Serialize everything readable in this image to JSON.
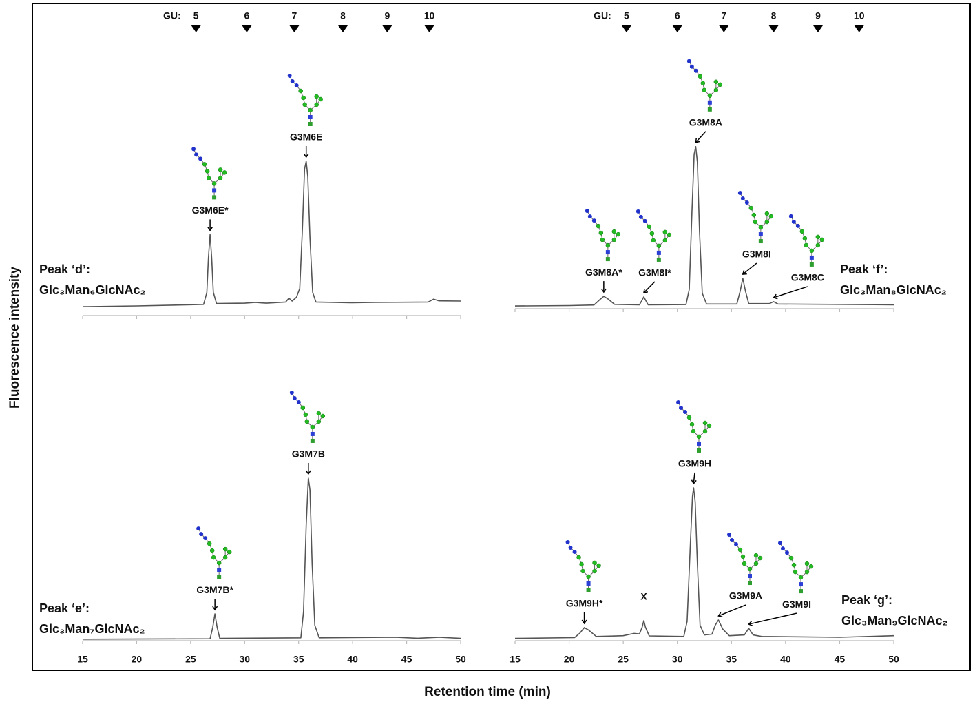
{
  "figure": {
    "xlabel": "Retention time (min)",
    "ylabel": "Fluorescence intensity"
  },
  "chart_data": [
    {
      "type": "line",
      "title": "Peak ‘d’:",
      "subtitle": "Glc₃Man₆GlcNAc₂",
      "color": "#555555",
      "xlim": [
        15,
        50
      ],
      "xticks": [
        15,
        20,
        25,
        30,
        35,
        40,
        45,
        50
      ],
      "xtick_labels": false,
      "ylim": [
        0,
        100
      ],
      "gu_label": "GU:",
      "gu_ticks": [
        {
          "value": 25.5,
          "label": "5"
        },
        {
          "value": 30.2,
          "label": "6"
        },
        {
          "value": 34.6,
          "label": "7"
        },
        {
          "value": 39.1,
          "label": "8"
        },
        {
          "value": 43.2,
          "label": "9"
        },
        {
          "value": 47.1,
          "label": "10"
        }
      ],
      "x": [
        15,
        20,
        25,
        26.2,
        26.5,
        26.65,
        26.8,
        26.95,
        27.1,
        27.4,
        30,
        31,
        32,
        33.8,
        34.1,
        34.4,
        34.8,
        35.1,
        35.35,
        35.55,
        35.7,
        35.85,
        36.05,
        36.3,
        36.6,
        40,
        42,
        47,
        47.5,
        48,
        50
      ],
      "values": [
        4.6,
        5.0,
        5.6,
        5.8,
        12,
        30,
        42,
        30,
        12,
        6.2,
        6.4,
        6.8,
        6.4,
        7.0,
        9,
        7.5,
        9.5,
        14,
        45,
        76,
        80,
        72,
        40,
        12,
        7.0,
        6.6,
        6.8,
        7.0,
        8.5,
        7.6,
        7.5
      ],
      "annotations": [
        {
          "text": "G3M6E*",
          "x": 26.8,
          "y": 42
        },
        {
          "text": "G3M6E",
          "x": 35.7,
          "y": 80
        }
      ]
    },
    {
      "type": "line",
      "title": "Peak ‘f’:",
      "subtitle": "Glc₃Man₈GlcNAc₂",
      "color": "#555555",
      "xlim": [
        15,
        50
      ],
      "xticks": [
        15,
        20,
        25,
        30,
        35,
        40,
        45,
        50
      ],
      "xtick_labels": false,
      "ylim": [
        0,
        100
      ],
      "gu_label": "GU:",
      "gu_ticks": [
        {
          "value": 25.3,
          "label": "5"
        },
        {
          "value": 30.0,
          "label": "6"
        },
        {
          "value": 34.3,
          "label": "7"
        },
        {
          "value": 38.9,
          "label": "8"
        },
        {
          "value": 43.0,
          "label": "9"
        },
        {
          "value": 46.8,
          "label": "10"
        }
      ],
      "x": [
        15,
        20,
        22.3,
        22.8,
        23.2,
        23.6,
        24.2,
        26.5,
        26.75,
        26.9,
        27.05,
        27.3,
        30.8,
        31.1,
        31.35,
        31.55,
        31.7,
        31.85,
        32.05,
        32.3,
        32.7,
        35.5,
        35.8,
        36.05,
        36.3,
        36.6,
        38.5,
        38.9,
        39.3,
        50
      ],
      "values": [
        1.4,
        1.6,
        1.9,
        4.5,
        6.4,
        5.0,
        2.2,
        2.0,
        4.5,
        6.1,
        4.5,
        2.0,
        2.1,
        10,
        50,
        80,
        84,
        76,
        40,
        8,
        2.4,
        2.4,
        9,
        15.7,
        9,
        2.6,
        2.6,
        3.6,
        2.4,
        2.0
      ],
      "annotations": [
        {
          "text": "G3M8A*",
          "x": 23.2,
          "y": 6.4
        },
        {
          "text": "G3M8I*",
          "x": 26.9,
          "y": 6.1
        },
        {
          "text": "G3M8A",
          "x": 31.7,
          "y": 84
        },
        {
          "text": "G3M8I",
          "x": 36.05,
          "y": 15.7
        },
        {
          "text": "G3M8C",
          "x": 38.9,
          "y": 3.6
        }
      ]
    },
    {
      "type": "line",
      "title": "Peak ‘e’:",
      "subtitle": "Glc₃Man₇GlcNAc₂",
      "color": "#555555",
      "xlim": [
        15,
        50
      ],
      "xticks": [
        15,
        20,
        25,
        30,
        35,
        40,
        45,
        50
      ],
      "xtick_labels": true,
      "ylim": [
        0,
        100
      ],
      "x": [
        15,
        26.8,
        27.05,
        27.25,
        27.45,
        27.7,
        35.2,
        35.45,
        35.7,
        35.9,
        36.05,
        36.25,
        36.5,
        36.9,
        44,
        46,
        48,
        50
      ],
      "values": [
        0.8,
        1.0,
        7,
        13.9,
        7,
        1.2,
        1.5,
        15,
        60,
        84.3,
        78,
        40,
        8,
        1.5,
        1.8,
        1.3,
        1.8,
        1.2
      ],
      "annotations": [
        {
          "text": "G3M7B*",
          "x": 27.25,
          "y": 13.9
        },
        {
          "text": "G3M7B",
          "x": 35.9,
          "y": 84.3
        }
      ]
    },
    {
      "type": "line",
      "title": "Peak ‘g’:",
      "subtitle": "Glc₃Man₉GlcNAc₂",
      "color": "#555555",
      "xlim": [
        15,
        50
      ],
      "xticks": [
        15,
        20,
        25,
        30,
        35,
        40,
        45,
        50
      ],
      "xtick_labels": true,
      "ylim": [
        0,
        100
      ],
      "x": [
        15,
        20.5,
        21.0,
        21.4,
        21.8,
        22.5,
        25,
        26,
        26.5,
        26.75,
        26.9,
        27.05,
        27.4,
        30.6,
        30.9,
        31.2,
        31.4,
        31.5,
        31.65,
        31.85,
        32.1,
        32.5,
        33.2,
        33.5,
        33.8,
        34.2,
        34.8,
        36.2,
        36.6,
        37,
        37.8,
        45,
        50
      ],
      "values": [
        1.2,
        1.6,
        4,
        6.8,
        5.5,
        2.2,
        2.6,
        3.8,
        3.5,
        7,
        10.4,
        7,
        2.5,
        2.2,
        10,
        50,
        75,
        79.3,
        72,
        40,
        8,
        3,
        3.4,
        8,
        10.7,
        6,
        2.6,
        3,
        6.4,
        3,
        2.2,
        1.8,
        2.6
      ],
      "annotations": [
        {
          "text": "G3M9H*",
          "x": 21.4,
          "y": 6.8
        },
        {
          "text": "X",
          "x": 26.9,
          "y": 10.4
        },
        {
          "text": "G3M9H",
          "x": 31.5,
          "y": 79.3
        },
        {
          "text": "G3M9A",
          "x": 33.8,
          "y": 10.7
        },
        {
          "text": "G3M9I",
          "x": 36.6,
          "y": 6.4
        }
      ]
    }
  ]
}
